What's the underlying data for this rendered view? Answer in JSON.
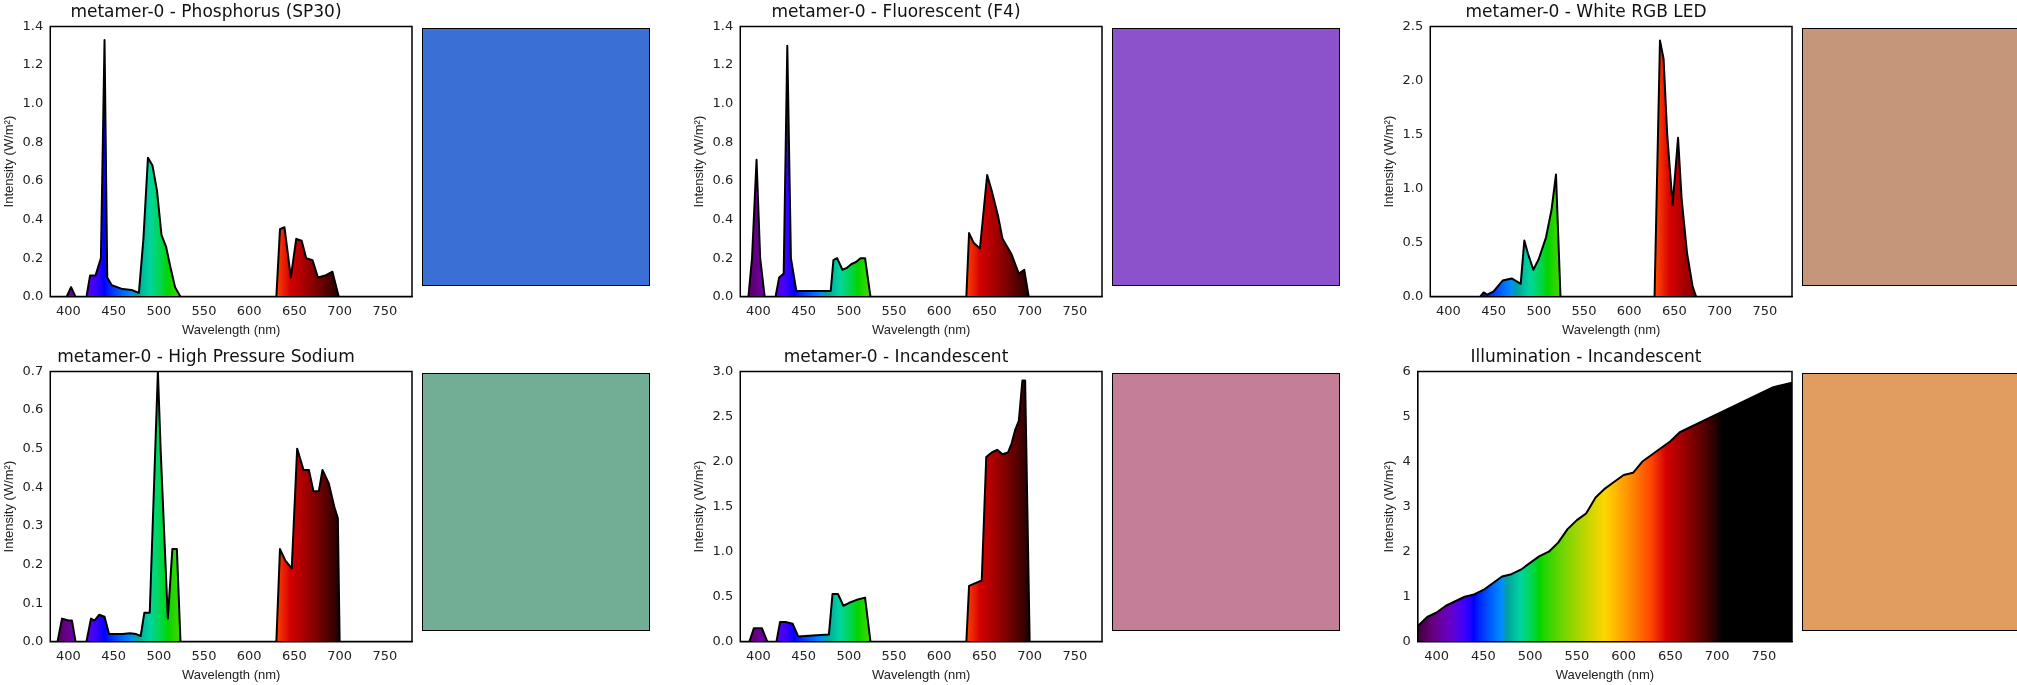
{
  "chart_data": [
    {
      "type": "area",
      "title": "metamer-0 - Phosphorus (SP30)",
      "xlabel": "Wavelength (nm)",
      "ylabel": "Intensity (W/m²)",
      "xlim": [
        380,
        780
      ],
      "xticks": [
        400,
        450,
        500,
        550,
        600,
        650,
        700,
        750
      ],
      "ylim": [
        0,
        1.4
      ],
      "yticks": [
        {
          "value": 0,
          "label": "0.0"
        },
        0.2,
        0.4,
        0.6,
        0.8,
        {
          "value": 1,
          "label": "1.0"
        },
        1.2,
        1.4
      ],
      "color": "#000000",
      "x": [
        380,
        398,
        403,
        408,
        420,
        424,
        430,
        436,
        440,
        443,
        448,
        460,
        470,
        478,
        483,
        488,
        493,
        498,
        503,
        508,
        513,
        518,
        524,
        630,
        634,
        639,
        646,
        652,
        658,
        663,
        670,
        676,
        684,
        692,
        699,
        780
      ],
      "values": [
        0,
        0,
        0.05,
        0,
        0,
        0.11,
        0.11,
        0.2,
        1.33,
        0.1,
        0.06,
        0.04,
        0.035,
        0.02,
        0.3,
        0.72,
        0.68,
        0.55,
        0.32,
        0.26,
        0.15,
        0.05,
        0,
        0,
        0.35,
        0.36,
        0.1,
        0.3,
        0.29,
        0.2,
        0.19,
        0.1,
        0.11,
        0.13,
        0,
        0
      ]
    },
    {
      "type": "area",
      "title": "metamer-0 - Fluorescent (F4)",
      "xlabel": "Wavelength (nm)",
      "ylabel": "Intensity (W/m²)",
      "xlim": [
        380,
        780
      ],
      "xticks": [
        400,
        450,
        500,
        550,
        600,
        650,
        700,
        750
      ],
      "ylim": [
        0,
        1.4
      ],
      "yticks": [
        {
          "value": 0,
          "label": "0.0"
        },
        0.2,
        0.4,
        0.6,
        0.8,
        {
          "value": 1,
          "label": "1.0"
        },
        1.2,
        1.4
      ],
      "color": "#000000",
      "x": [
        380,
        389,
        393,
        398,
        402,
        407,
        419,
        423,
        428,
        432,
        436,
        442,
        470,
        480,
        483,
        487,
        493,
        498,
        503,
        508,
        513,
        518,
        524,
        630,
        633,
        638,
        645,
        653,
        658,
        665,
        670,
        680,
        688,
        694,
        699,
        780
      ],
      "values": [
        0,
        0,
        0.2,
        0.71,
        0.2,
        0,
        0,
        0.1,
        0.12,
        1.3,
        0.2,
        0.03,
        0.03,
        0.03,
        0.19,
        0.2,
        0.14,
        0.15,
        0.17,
        0.18,
        0.2,
        0.2,
        0,
        0,
        0.33,
        0.28,
        0.25,
        0.63,
        0.55,
        0.42,
        0.3,
        0.22,
        0.12,
        0.14,
        0,
        0
      ]
    },
    {
      "type": "area",
      "title": "metamer-0 - White RGB LED",
      "xlabel": "Wavelength (nm)",
      "ylabel": "Intensity (W/m²)",
      "xlim": [
        380,
        780
      ],
      "xticks": [
        400,
        450,
        500,
        550,
        600,
        650,
        700,
        750
      ],
      "ylim": [
        0,
        2.5
      ],
      "yticks": [
        {
          "value": 0,
          "label": "0.0"
        },
        0.5,
        {
          "value": 1,
          "label": "1.0"
        },
        1.5,
        {
          "value": 2,
          "label": "2.0"
        },
        2.5
      ],
      "color": "#000000",
      "x": [
        380,
        435,
        439,
        443,
        450,
        460,
        470,
        476,
        480,
        484,
        488,
        494,
        500,
        508,
        514,
        519,
        524,
        628,
        634,
        638,
        642,
        648,
        654,
        658,
        664,
        670,
        674,
        780
      ],
      "values": [
        0,
        0,
        0.04,
        0.02,
        0.05,
        0.15,
        0.17,
        0.14,
        0.12,
        0.52,
        0.4,
        0.25,
        0.35,
        0.55,
        0.8,
        1.13,
        0,
        0,
        2.37,
        2.2,
        1.5,
        0.85,
        1.47,
        0.9,
        0.4,
        0.1,
        0,
        0
      ]
    },
    {
      "type": "area",
      "title": "metamer-0 - High Pressure Sodium",
      "xlabel": "Wavelength (nm)",
      "ylabel": "Intensity (W/m²)",
      "xlim": [
        380,
        780
      ],
      "xticks": [
        400,
        450,
        500,
        550,
        600,
        650,
        700,
        750
      ],
      "ylim": [
        0,
        0.7
      ],
      "yticks": [
        {
          "value": 0,
          "label": "0.0"
        },
        0.1,
        0.2,
        0.3,
        0.4,
        0.5,
        0.6,
        0.7
      ],
      "color": "#000000",
      "x": [
        380,
        388,
        393,
        400,
        404,
        408,
        420,
        425,
        429,
        434,
        440,
        445,
        460,
        468,
        475,
        480,
        484,
        490,
        499,
        502,
        510,
        515,
        520,
        524,
        630,
        634,
        640,
        647,
        653,
        660,
        666,
        671,
        677,
        681,
        688,
        694,
        698,
        700,
        780
      ],
      "values": [
        0,
        0,
        0.06,
        0.055,
        0.055,
        0,
        0,
        0.06,
        0.055,
        0.07,
        0.065,
        0.02,
        0.02,
        0.022,
        0.02,
        0.015,
        0.075,
        0.075,
        0.7,
        0.5,
        0.06,
        0.24,
        0.24,
        0,
        0,
        0.24,
        0.21,
        0.19,
        0.5,
        0.445,
        0.445,
        0.39,
        0.39,
        0.445,
        0.41,
        0.35,
        0.32,
        0,
        0
      ]
    },
    {
      "type": "area",
      "title": "metamer-0 - Incandescent",
      "xlabel": "Wavelength (nm)",
      "ylabel": "Intensity (W/m²)",
      "xlim": [
        380,
        780
      ],
      "xticks": [
        400,
        450,
        500,
        550,
        600,
        650,
        700,
        750
      ],
      "ylim": [
        0,
        3.0
      ],
      "yticks": [
        {
          "value": 0,
          "label": "0.0"
        },
        0.5,
        {
          "value": 1,
          "label": "1.0"
        },
        1.5,
        {
          "value": 2,
          "label": "2.0"
        },
        2.5,
        {
          "value": 3,
          "label": "3.0"
        }
      ],
      "color": "#000000",
      "x": [
        380,
        390,
        395,
        404,
        410,
        420,
        424,
        430,
        438,
        444,
        460,
        478,
        482,
        488,
        494,
        500,
        510,
        518,
        524,
        630,
        633,
        642,
        647,
        652,
        658,
        664,
        670,
        676,
        680,
        684,
        688,
        692,
        695,
        700,
        780
      ],
      "values": [
        0,
        0,
        0.15,
        0.15,
        0,
        0,
        0.22,
        0.22,
        0.2,
        0.06,
        0.07,
        0.08,
        0.53,
        0.53,
        0.4,
        0.43,
        0.47,
        0.49,
        0,
        0,
        0.62,
        0.66,
        0.68,
        2.05,
        2.1,
        2.13,
        2.08,
        2.1,
        2.2,
        2.35,
        2.45,
        2.9,
        2.9,
        0,
        0
      ]
    },
    {
      "type": "area",
      "title": "Illumination - Incandescent",
      "xlabel": "Wavelength (nm)",
      "ylabel": "Intensity (W/m²)",
      "xlim": [
        380,
        780
      ],
      "xticks": [
        400,
        450,
        500,
        550,
        600,
        650,
        700,
        750
      ],
      "ylim": [
        0,
        6
      ],
      "yticks": [
        0,
        1,
        2,
        3,
        4,
        5,
        6
      ],
      "color": "#000000",
      "x": [
        380,
        390,
        400,
        410,
        420,
        430,
        440,
        450,
        460,
        470,
        480,
        490,
        500,
        510,
        520,
        530,
        540,
        550,
        560,
        570,
        580,
        590,
        600,
        610,
        620,
        630,
        640,
        650,
        660,
        670,
        680,
        690,
        700,
        710,
        720,
        730,
        740,
        750,
        760,
        770,
        780
      ],
      "values": [
        0.35,
        0.55,
        0.65,
        0.8,
        0.9,
        1.0,
        1.05,
        1.15,
        1.3,
        1.45,
        1.5,
        1.6,
        1.75,
        1.9,
        2.0,
        2.2,
        2.5,
        2.7,
        2.85,
        3.2,
        3.4,
        3.55,
        3.7,
        3.75,
        4.0,
        4.15,
        4.3,
        4.45,
        4.65,
        4.75,
        4.85,
        4.95,
        5.05,
        5.15,
        5.25,
        5.35,
        5.45,
        5.55,
        5.65,
        5.7,
        5.75
      ]
    }
  ]
}
